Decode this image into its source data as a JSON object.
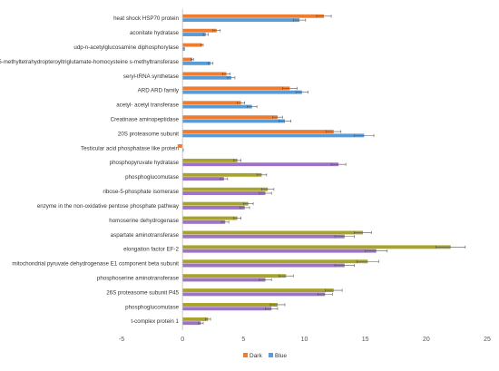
{
  "chart_data": {
    "type": "bar",
    "orientation": "horizontal",
    "categories": [
      "heat shock HSP70 protein",
      "aconitate hydratase",
      "udp-n-acetylglucosamine diphosphorylase",
      "5-methyltetrahydropteroyltriglutamate-homocysteine s-methyltransferase",
      "seryl-tRNA synthetase",
      "ARD ARD family",
      "acetyl- acetyl transferase",
      "Creatinase aminopeptidase",
      "20S proteasome subunit",
      "Testicular acid phosphatase like protein",
      "phosphopyruvate hydratase",
      "phosphoglucomutase",
      "ribose-5-phosphate isomerase",
      "enzyme in the non-oxidative pentose phosphate pathway",
      "homoserine dehydrogenase",
      "aspartate aminotransferase",
      "elongation factor EF-2",
      "mitochondrial pyruvate dehydrogenase E1 component beta subunit",
      "phosphoserine aminotransferase",
      "26S proteasome subunit P45",
      "phosphoglucomutase",
      "t-complex protein 1"
    ],
    "series": [
      {
        "name": "Dark",
        "values": [
          11.6,
          2.8,
          1.6,
          0.8,
          3.6,
          8.8,
          4.8,
          7.8,
          12.4,
          -0.4,
          4.5,
          6.5,
          7.0,
          5.4,
          4.5,
          14.8,
          22.0,
          15.2,
          8.5,
          12.4,
          7.8,
          2.1
        ],
        "errors": [
          0.6,
          0.3,
          0.1,
          0.1,
          0.3,
          0.6,
          0.3,
          0.4,
          0.6,
          0.05,
          0.3,
          0.4,
          0.5,
          0.4,
          0.3,
          0.7,
          1.2,
          0.9,
          0.6,
          0.7,
          0.6,
          0.2
        ]
      },
      {
        "name": "Blue",
        "values": [
          9.6,
          1.9,
          0.2,
          2.3,
          4.0,
          9.8,
          5.7,
          8.4,
          14.9,
          0.1,
          12.8,
          3.4,
          6.8,
          5.1,
          3.5,
          13.3,
          15.9,
          13.3,
          6.8,
          11.7,
          7.3,
          1.5
        ],
        "errors": [
          0.5,
          0.2,
          0.05,
          0.2,
          0.3,
          0.5,
          0.4,
          0.5,
          0.8,
          0.05,
          0.6,
          0.3,
          0.5,
          0.4,
          0.3,
          0.8,
          0.9,
          0.8,
          0.5,
          0.6,
          0.5,
          0.2
        ]
      }
    ],
    "colors": {
      "Dark_upper": "#ed7d31",
      "Dark_lower": "#a9a329",
      "Blue_upper": "#5b9bd5",
      "Blue_lower": "#9e72c8",
      "error_bar": "#555555",
      "axis": "#bfbfbf"
    },
    "xlim": [
      -5,
      25
    ],
    "xticks": [
      -5,
      0,
      5,
      10,
      15,
      20,
      25
    ],
    "grid": false,
    "legend_position": "bottom-center",
    "title": "",
    "xlabel": "",
    "ylabel": ""
  }
}
